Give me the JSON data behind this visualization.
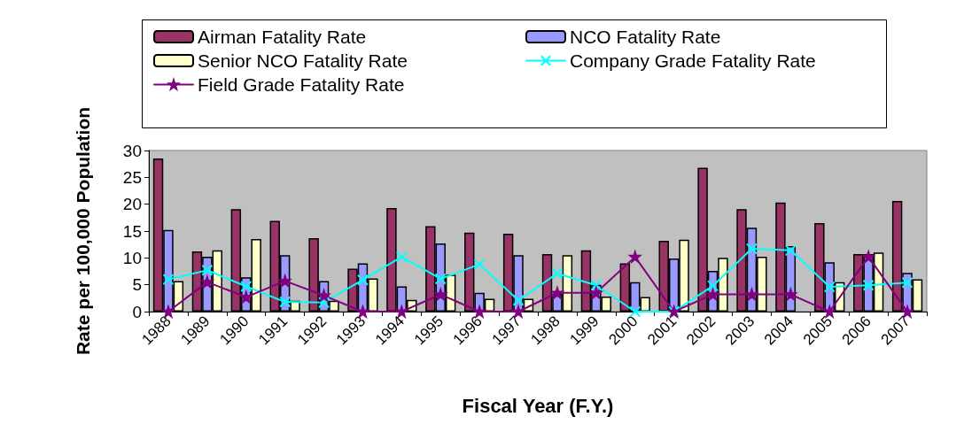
{
  "chart_data": {
    "type": "bar",
    "xlabel": "Fiscal Year (F.Y.)",
    "ylabel": "Rate per 100,000 Population",
    "categories": [
      "1988",
      "1989",
      "1990",
      "1991",
      "1992",
      "1993",
      "1994",
      "1995",
      "1996",
      "1997",
      "1998",
      "1999",
      "2000",
      "2001",
      "2002",
      "2003",
      "2004",
      "2005",
      "2006",
      "2007"
    ],
    "series": [
      {
        "name": "Airman Fatality Rate",
        "color": "#993366",
        "values": [
          28.5,
          11.2,
          19.1,
          16.9,
          13.7,
          8.0,
          19.3,
          15.9,
          14.7,
          14.5,
          10.7,
          11.4,
          9.0,
          13.2,
          26.8,
          19.1,
          20.3,
          16.5,
          10.7,
          20.6
        ]
      },
      {
        "name": "NCO Fatality Rate",
        "color": "#9999ff",
        "values": [
          15.2,
          10.2,
          6.4,
          10.5,
          5.7,
          9.0,
          4.7,
          12.7,
          3.5,
          10.5,
          3.3,
          5.0,
          5.5,
          9.9,
          7.6,
          15.6,
          12.2,
          9.2,
          10.7,
          7.2
        ]
      },
      {
        "name": "Senior NCO Fatality Rate",
        "color": "#ffffcc",
        "values": [
          5.7,
          11.4,
          13.5,
          2.0,
          2.0,
          6.2,
          2.2,
          6.9,
          2.4,
          2.4,
          10.5,
          2.8,
          2.7,
          13.4,
          10.0,
          10.2,
          null,
          5.5,
          11.0,
          6.0
        ]
      },
      {
        "name": "Company Grade Fatality Rate",
        "type": "line",
        "marker": "cross",
        "color": "#00ffff",
        "values": [
          6.0,
          7.7,
          4.7,
          1.8,
          1.7,
          5.9,
          10.2,
          6.1,
          8.8,
          2.1,
          7.1,
          4.9,
          0,
          0,
          4.8,
          11.7,
          11.4,
          4.6,
          4.9,
          5.4
        ]
      },
      {
        "name": "Field Grade Fatality Rate",
        "type": "line",
        "marker": "star",
        "color": "#800080",
        "values": [
          0,
          5.5,
          2.7,
          5.7,
          3.0,
          0,
          0,
          3.2,
          0,
          0,
          3.5,
          3.5,
          10.2,
          0,
          3.2,
          3.2,
          3.2,
          0,
          10.2,
          0
        ]
      }
    ],
    "ylim": [
      0,
      30
    ],
    "yticks": [
      0,
      5,
      10,
      15,
      20,
      25,
      30
    ],
    "grid": false,
    "legend": "top"
  }
}
